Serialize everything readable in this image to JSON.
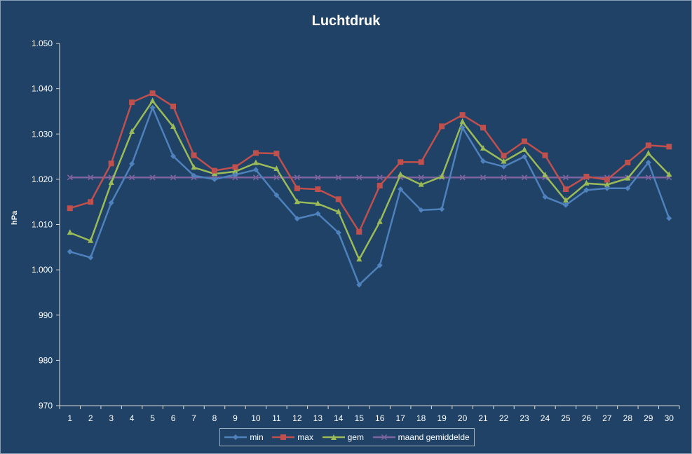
{
  "chart_data": {
    "type": "line",
    "title": "Luchtdruk",
    "xlabel": "",
    "ylabel": "hPa",
    "ylim": [
      970,
      1050
    ],
    "yticks": [
      970,
      980,
      990,
      1000,
      1010,
      1020,
      1030,
      1040,
      1050
    ],
    "ytick_labels": [
      "970",
      "980",
      "990",
      "1.000",
      "1.010",
      "1.020",
      "1.030",
      "1.040",
      "1.050"
    ],
    "x": [
      "1",
      "2",
      "3",
      "4",
      "5",
      "6",
      "7",
      "8",
      "9",
      "10",
      "11",
      "12",
      "13",
      "14",
      "15",
      "16",
      "17",
      "18",
      "19",
      "20",
      "21",
      "22",
      "23",
      "24",
      "25",
      "26",
      "27",
      "28",
      "29",
      "30"
    ],
    "grid": false,
    "legend_position": "bottom",
    "series": [
      {
        "name": "min",
        "color": "#4f81bd",
        "marker": "diamond",
        "values": [
          1004.0,
          1002.7,
          1014.8,
          1023.4,
          1035.8,
          1025.1,
          1020.8,
          1020.0,
          1021.0,
          1022.1,
          1016.5,
          1011.3,
          1012.4,
          1008.2,
          996.7,
          1001.0,
          1017.8,
          1013.2,
          1013.4,
          1031.4,
          1024.0,
          1022.8,
          1025.0,
          1016.1,
          1014.3,
          1017.6,
          1018.0,
          1018.0,
          1023.7,
          1011.4
        ]
      },
      {
        "name": "max",
        "color": "#c0504d",
        "marker": "square",
        "values": [
          1013.6,
          1015.0,
          1023.5,
          1037.0,
          1039.0,
          1036.1,
          1025.3,
          1021.9,
          1022.7,
          1025.8,
          1025.7,
          1018.0,
          1017.8,
          1015.6,
          1008.4,
          1018.6,
          1023.8,
          1023.8,
          1031.7,
          1034.2,
          1031.4,
          1025.2,
          1028.4,
          1025.3,
          1017.8,
          1020.6,
          1019.9,
          1023.7,
          1027.5,
          1027.2
        ]
      },
      {
        "name": "gem",
        "color": "#9bbb59",
        "marker": "triangle",
        "values": [
          1008.2,
          1006.4,
          1019.2,
          1030.5,
          1037.3,
          1031.6,
          1022.6,
          1021.2,
          1021.7,
          1023.6,
          1022.3,
          1015.0,
          1014.6,
          1012.8,
          1002.3,
          1010.6,
          1021.0,
          1018.8,
          1020.6,
          1032.7,
          1026.8,
          1023.9,
          1026.5,
          1020.9,
          1015.3,
          1019.1,
          1018.8,
          1020.2,
          1025.7,
          1021.0
        ]
      },
      {
        "name": "maand gemiddelde",
        "color": "#8064a2",
        "marker": "x",
        "values": [
          1020.4,
          1020.4,
          1020.4,
          1020.4,
          1020.4,
          1020.4,
          1020.4,
          1020.4,
          1020.4,
          1020.4,
          1020.4,
          1020.4,
          1020.4,
          1020.4,
          1020.4,
          1020.4,
          1020.4,
          1020.4,
          1020.4,
          1020.4,
          1020.4,
          1020.4,
          1020.4,
          1020.4,
          1020.4,
          1020.4,
          1020.4,
          1020.4,
          1020.4,
          1020.4
        ]
      }
    ]
  }
}
